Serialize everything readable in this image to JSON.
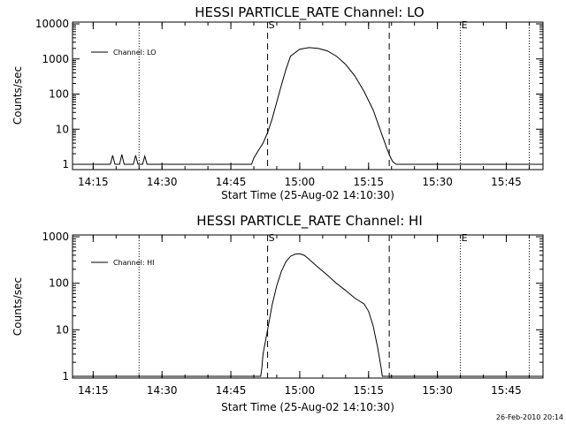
{
  "footer": {
    "stamp": "26-Feb-2010 20:14"
  },
  "chart_data": [
    {
      "type": "line",
      "title": "HESSI PARTICLE_RATE Channel: LO",
      "xlabel": "Start Time (25-Aug-02 14:10:30)",
      "ylabel": "Counts/sec",
      "y_scale": "log",
      "ylim": [
        1,
        10000
      ],
      "xlim": [
        "14:10:30",
        "15:53:00"
      ],
      "x_ticks": [
        "14:15",
        "14:30",
        "14:45",
        "15:00",
        "15:15",
        "15:30",
        "15:45"
      ],
      "y_ticks": [
        "1",
        "10",
        "100",
        "1000",
        "10000"
      ],
      "legend": {
        "label": "Channel: LO",
        "position": "top-left"
      },
      "markers": [
        {
          "label": "S",
          "time": "14:53:00",
          "style": "dashed"
        },
        {
          "label": "",
          "time": "15:19:30",
          "style": "dashed"
        },
        {
          "label": "E",
          "time": "15:35:00",
          "style": "dotted"
        },
        {
          "label": "",
          "time": "14:25:00",
          "style": "dotted"
        },
        {
          "label": "",
          "time": "15:50:00",
          "style": "dotted"
        }
      ],
      "series": [
        {
          "name": "Channel: LO",
          "x": [
            "14:10:30",
            "14:18:45",
            "14:19:15",
            "14:19:45",
            "14:20:45",
            "14:21:15",
            "14:21:45",
            "14:23:45",
            "14:24:15",
            "14:24:45",
            "14:25:45",
            "14:26:15",
            "14:26:45",
            "14:49:30",
            "14:50:00",
            "14:51:00",
            "14:52:00",
            "14:53:00",
            "14:54:00",
            "14:55:00",
            "14:56:00",
            "14:57:00",
            "14:58:00",
            "15:00:00",
            "15:02:00",
            "15:04:00",
            "15:06:00",
            "15:08:00",
            "15:10:00",
            "15:12:00",
            "15:14:00",
            "15:16:00",
            "15:17:30",
            "15:19:00",
            "15:19:45",
            "15:20:15",
            "15:21:00",
            "15:53:00"
          ],
          "values": [
            1,
            1,
            1.8,
            1,
            1,
            1.9,
            1,
            1,
            1.8,
            1,
            1,
            1.7,
            1,
            1,
            1.5,
            2.5,
            4,
            8,
            20,
            60,
            180,
            500,
            1200,
            1900,
            2100,
            2000,
            1700,
            1200,
            700,
            330,
            120,
            35,
            10,
            2.8,
            1.6,
            1.2,
            1,
            1
          ]
        }
      ]
    },
    {
      "type": "line",
      "title": "HESSI PARTICLE_RATE Channel: HI",
      "xlabel": "Start Time (25-Aug-02 14:10:30)",
      "ylabel": "Counts/sec",
      "y_scale": "log",
      "ylim": [
        1,
        1000
      ],
      "xlim": [
        "14:10:30",
        "15:53:00"
      ],
      "x_ticks": [
        "14:15",
        "14:30",
        "14:45",
        "15:00",
        "15:15",
        "15:30",
        "15:45"
      ],
      "y_ticks": [
        "1",
        "10",
        "100",
        "1000"
      ],
      "legend": {
        "label": "Channel: HI",
        "position": "top-left"
      },
      "markers": [
        {
          "label": "S",
          "time": "14:53:00",
          "style": "dashed"
        },
        {
          "label": "",
          "time": "15:19:30",
          "style": "dashed"
        },
        {
          "label": "E",
          "time": "15:35:00",
          "style": "dotted"
        },
        {
          "label": "",
          "time": "14:25:00",
          "style": "dotted"
        },
        {
          "label": "",
          "time": "15:50:00",
          "style": "dotted"
        }
      ],
      "series": [
        {
          "name": "Channel: HI",
          "x": [
            "14:10:30",
            "14:51:30",
            "14:51:45",
            "14:52:00",
            "14:53:00",
            "14:54:00",
            "14:55:00",
            "14:56:00",
            "14:57:00",
            "14:58:00",
            "14:59:00",
            "15:00:00",
            "15:01:00",
            "15:02:00",
            "15:04:00",
            "15:06:00",
            "15:08:00",
            "15:10:00",
            "15:12:00",
            "15:14:00",
            "15:15:00",
            "15:16:00",
            "15:17:00",
            "15:17:45",
            "15:18:00",
            "15:53:00"
          ],
          "values": [
            1,
            1,
            1.5,
            3,
            10,
            35,
            90,
            180,
            290,
            380,
            420,
            430,
            400,
            330,
            220,
            150,
            100,
            70,
            48,
            36,
            25,
            12,
            4,
            1.5,
            1,
            1
          ]
        }
      ]
    }
  ]
}
